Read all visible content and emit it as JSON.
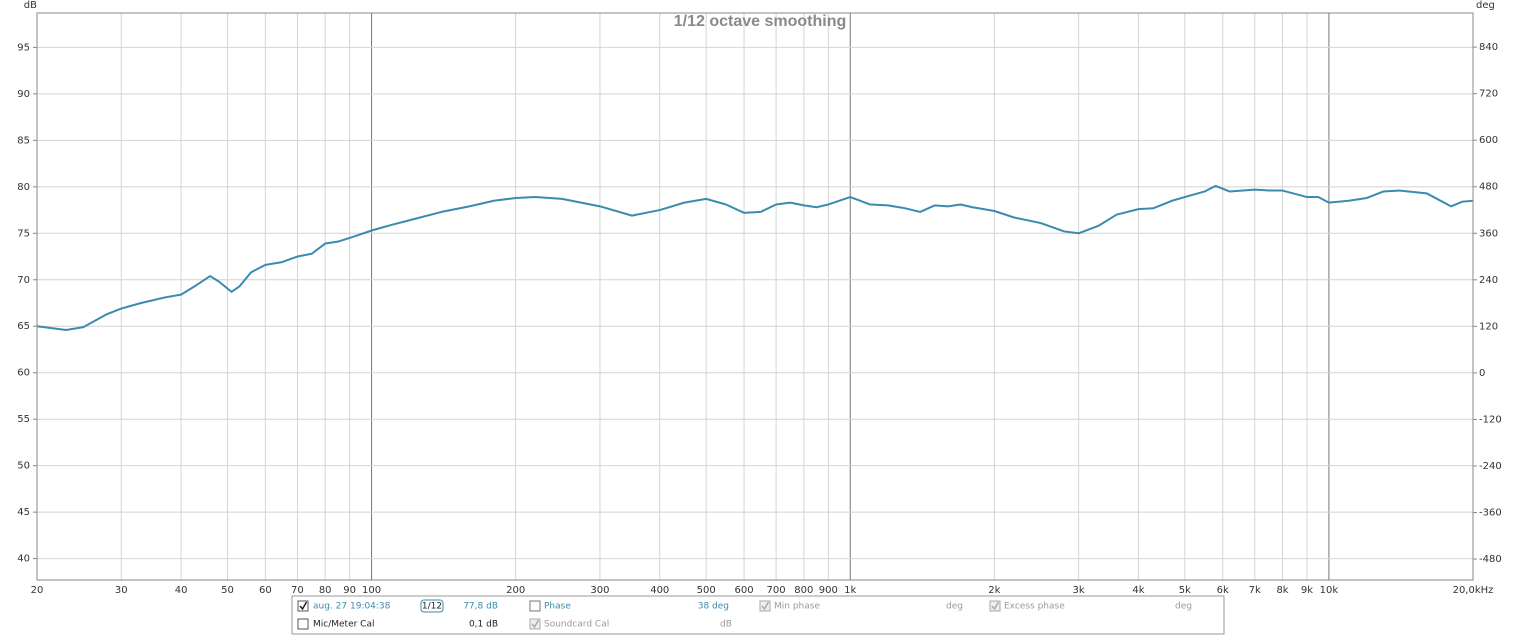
{
  "chart_data": {
    "type": "line",
    "title": "1/12 octave smoothing",
    "y_label": "dB",
    "y2_label": "deg",
    "log_x": true,
    "grid": true,
    "xlim": [
      20,
      20000
    ],
    "xticks": [
      20,
      30,
      40,
      50,
      60,
      70,
      80,
      90,
      100,
      200,
      300,
      400,
      500,
      600,
      700,
      800,
      900,
      {
        "value": 1000,
        "label": "1k"
      },
      {
        "value": 2000,
        "label": "2k"
      },
      {
        "value": 3000,
        "label": "3k"
      },
      {
        "value": 4000,
        "label": "4k"
      },
      {
        "value": 5000,
        "label": "5k"
      },
      {
        "value": 6000,
        "label": "6k"
      },
      {
        "value": 7000,
        "label": "7k"
      },
      {
        "value": 8000,
        "label": "8k"
      },
      {
        "value": 9000,
        "label": "9k"
      },
      {
        "value": 10000,
        "label": "10k"
      },
      {
        "value": 20000,
        "label": "20,0kHz"
      }
    ],
    "ylim": [
      37.7,
      98.7
    ],
    "yticks": [
      40,
      45,
      50,
      55,
      60,
      65,
      70,
      75,
      80,
      85,
      90,
      95
    ],
    "y2lim": [
      -534,
      928
    ],
    "y2ticks": [
      -480,
      -360,
      -240,
      -120,
      0,
      120,
      240,
      360,
      480,
      600,
      720,
      840
    ],
    "x": [
      20,
      23,
      25,
      28,
      30,
      33,
      37,
      40,
      43,
      46,
      48,
      51,
      53,
      56,
      60,
      65,
      70,
      75,
      80,
      85,
      90,
      95,
      100,
      110,
      120,
      140,
      160,
      180,
      200,
      220,
      250,
      300,
      350,
      400,
      450,
      500,
      550,
      600,
      650,
      700,
      750,
      800,
      850,
      900,
      1000,
      1100,
      1200,
      1300,
      1400,
      1500,
      1600,
      1700,
      1800,
      1900,
      2000,
      2200,
      2500,
      2800,
      3000,
      3300,
      3600,
      4000,
      4300,
      4700,
      5000,
      5500,
      5800,
      6200,
      7000,
      7500,
      8000,
      9000,
      9500,
      10000,
      11000,
      12000,
      13000,
      14000,
      16000,
      18000,
      19000,
      20000
    ],
    "series": [
      {
        "name": "aug. 27 19:04:38",
        "color": "#3a8bb0",
        "values": [
          65.0,
          64.6,
          64.9,
          66.3,
          66.9,
          67.5,
          68.1,
          68.4,
          69.4,
          70.4,
          69.8,
          68.7,
          69.3,
          70.8,
          71.6,
          71.9,
          72.5,
          72.8,
          73.9,
          74.1,
          74.5,
          74.9,
          75.3,
          75.9,
          76.4,
          77.3,
          77.9,
          78.5,
          78.8,
          78.9,
          78.7,
          77.9,
          76.9,
          77.5,
          78.3,
          78.7,
          78.1,
          77.2,
          77.3,
          78.1,
          78.3,
          78.0,
          77.8,
          78.1,
          78.9,
          78.1,
          78.0,
          77.7,
          77.3,
          78.0,
          77.9,
          78.1,
          77.8,
          77.6,
          77.4,
          76.7,
          76.1,
          75.2,
          75.0,
          75.8,
          77.0,
          77.6,
          77.7,
          78.5,
          78.9,
          79.5,
          80.1,
          79.5,
          79.7,
          79.6,
          79.6,
          78.9,
          78.9,
          78.3,
          78.5,
          78.8,
          79.5,
          79.6,
          79.3,
          77.9,
          78.4,
          78.5
        ]
      }
    ]
  },
  "controls": {
    "smoothing": "1/12",
    "level": "77,8 dB",
    "phase": "Phase",
    "phase_value": "38 deg",
    "min_phase": "Min phase",
    "min_phase_unit": "deg",
    "excess_phase": "Excess phase",
    "excess_phase_unit": "deg",
    "mic_cal": "Mic/Meter Cal",
    "mic_cal_value": "0,1 dB",
    "soundcard_cal": "Soundcard Cal",
    "soundcard_cal_unit": "dB"
  }
}
